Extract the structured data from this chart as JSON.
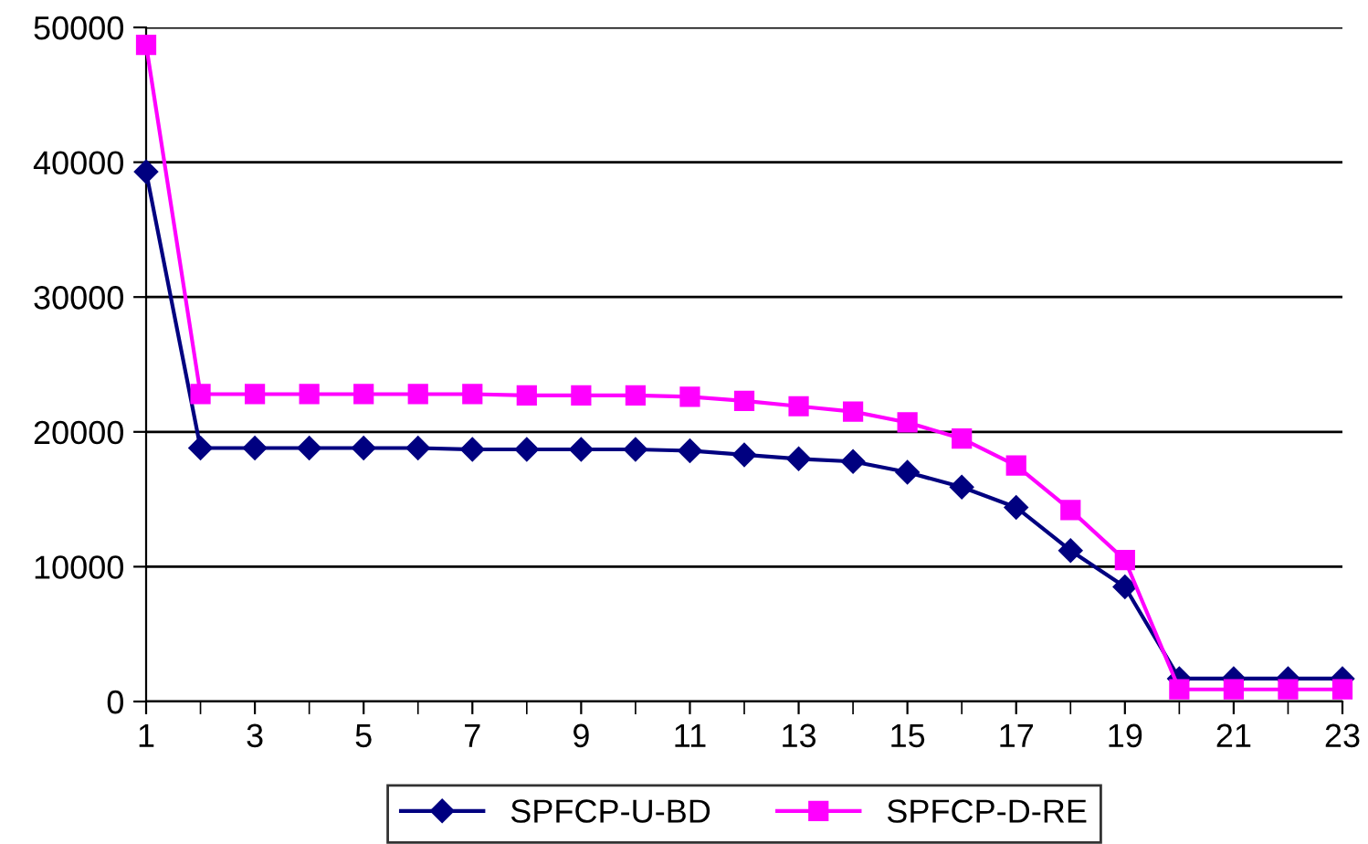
{
  "chart_data": {
    "type": "line",
    "x": [
      1,
      2,
      3,
      4,
      5,
      6,
      7,
      8,
      9,
      10,
      11,
      12,
      13,
      14,
      15,
      16,
      17,
      18,
      19,
      20,
      21,
      22,
      23
    ],
    "series": [
      {
        "name": "SPFCP-U-BD",
        "color": "#000080",
        "marker": "diamond",
        "values": [
          39300,
          18800,
          18800,
          18800,
          18800,
          18800,
          18700,
          18700,
          18700,
          18700,
          18600,
          18300,
          18000,
          17800,
          17000,
          15900,
          14400,
          11200,
          8500,
          1700,
          1700,
          1700,
          1700
        ]
      },
      {
        "name": "SPFCP-D-RE",
        "color": "#ff00ff",
        "marker": "square",
        "values": [
          48700,
          22800,
          22800,
          22800,
          22800,
          22800,
          22800,
          22700,
          22700,
          22700,
          22600,
          22300,
          21900,
          21500,
          20700,
          19500,
          17500,
          14200,
          10500,
          900,
          900,
          900,
          900
        ]
      }
    ],
    "xlim": [
      1,
      23
    ],
    "xticks": [
      1,
      3,
      5,
      7,
      9,
      11,
      13,
      15,
      17,
      19,
      21,
      23
    ],
    "ylim": [
      0,
      50000
    ],
    "yticks": [
      0,
      10000,
      20000,
      30000,
      40000,
      50000
    ],
    "grid": "y",
    "legend": "bottom"
  }
}
